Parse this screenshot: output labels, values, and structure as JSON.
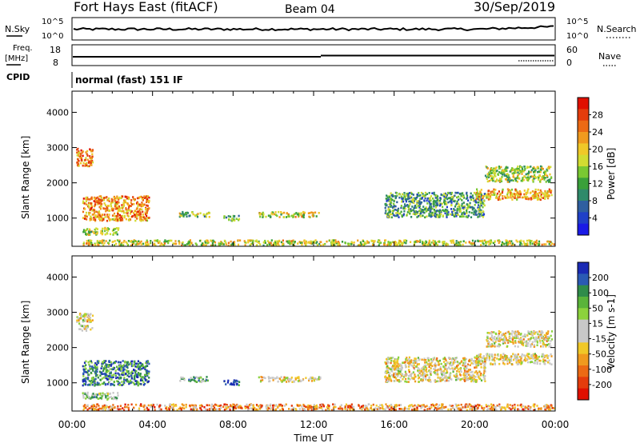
{
  "header": {
    "station": "Fort Hays East (fitACF)",
    "beam": "Beam 04",
    "date": "30/Sep/2019"
  },
  "top_panels": {
    "nsky_label": "N.Sky",
    "nsearch_label": "N.Search",
    "noise_ticks": [
      "10^5",
      "10^0"
    ],
    "freq_label_1": "Freq.",
    "freq_label_2": "[MHz]",
    "freq_ticks": [
      "18",
      "8"
    ],
    "nave_label": "Nave",
    "nave_ticks": [
      "60",
      "0"
    ],
    "cpid_label": "CPID",
    "cpid_text": "normal (fast) 151 IF"
  },
  "chart_data": [
    {
      "type": "heatmap",
      "title": "",
      "xlabel": "Time UT",
      "ylabel": "Slant Range [km]",
      "x_ticks": [
        "00:00",
        "04:00",
        "08:00",
        "12:00",
        "16:00",
        "20:00",
        "00:00"
      ],
      "y_ticks": [
        1000,
        2000,
        3000,
        4000
      ],
      "ylim": [
        200,
        4600
      ],
      "colorbar": {
        "label": "Power [dB]",
        "ticks": [
          "4",
          "8",
          "12",
          "16",
          "20",
          "24",
          "28"
        ],
        "colors": [
          "#1a1ae6",
          "#2040c8",
          "#2f5fa0",
          "#2f8a6a",
          "#3aa03a",
          "#7ac832",
          "#d2dc32",
          "#f0c828",
          "#f09a1e",
          "#ec6a14",
          "#e43c0c",
          "#e01000"
        ]
      },
      "regions": [
        {
          "name": "near-range-band",
          "t": [
            0.5,
            24
          ],
          "r": [
            250,
            400
          ],
          "level": 0.55
        },
        {
          "name": "early-high-echo",
          "t": [
            0.2,
            1.0
          ],
          "r": [
            2500,
            3000
          ],
          "level": 0.75
        },
        {
          "name": "morning-scatter",
          "t": [
            0.5,
            3.8
          ],
          "r": [
            950,
            1650
          ],
          "level": 0.72
        },
        {
          "name": "low-morning",
          "t": [
            0.5,
            2.3
          ],
          "r": [
            550,
            750
          ],
          "level": 0.5
        },
        {
          "name": "mid-day-patch-1",
          "t": [
            5.3,
            6.8
          ],
          "r": [
            1050,
            1200
          ],
          "level": 0.45
        },
        {
          "name": "mid-day-patch-2",
          "t": [
            7.5,
            8.3
          ],
          "r": [
            950,
            1100
          ],
          "level": 0.4
        },
        {
          "name": "mid-day-patch-3",
          "t": [
            9.2,
            12.3
          ],
          "r": [
            1050,
            1200
          ],
          "level": 0.55
        },
        {
          "name": "evening-arc",
          "t": [
            15.5,
            20.5
          ],
          "r": [
            1050,
            1750
          ],
          "level": 0.35
        },
        {
          "name": "night-upper",
          "t": [
            20.5,
            23.8
          ],
          "r": [
            2050,
            2500
          ],
          "level": 0.5
        },
        {
          "name": "night-lower",
          "t": [
            20.0,
            23.8
          ],
          "r": [
            1550,
            1850
          ],
          "level": 0.68
        }
      ]
    },
    {
      "type": "heatmap",
      "title": "",
      "xlabel": "Time UT",
      "ylabel": "Slant Range [km]",
      "x_ticks": [
        "00:00",
        "04:00",
        "08:00",
        "12:00",
        "16:00",
        "20:00",
        "00:00"
      ],
      "y_ticks": [
        1000,
        2000,
        3000,
        4000
      ],
      "ylim": [
        200,
        4600
      ],
      "colorbar": {
        "label": "Velocity [m s-1]",
        "ticks": [
          "200",
          "100",
          "50",
          "15",
          "-15",
          "-50",
          "-100",
          "-200"
        ],
        "colors": [
          "#1a2ab4",
          "#2a5ab4",
          "#2f8c4a",
          "#5ab43a",
          "#8cd23c",
          "#c8c8c8",
          "#c8c8c8",
          "#f0c828",
          "#f09a1e",
          "#ec6a14",
          "#e43c0c",
          "#e01000"
        ]
      },
      "regions": [
        {
          "name": "near-range-band",
          "t": [
            0.5,
            24
          ],
          "r": [
            250,
            420
          ],
          "level": 0.72
        },
        {
          "name": "early-high-echo",
          "t": [
            0.2,
            1.0
          ],
          "r": [
            2500,
            3000
          ],
          "level": 0.55
        },
        {
          "name": "morning-scatter",
          "t": [
            0.5,
            3.8
          ],
          "r": [
            950,
            1650
          ],
          "level": 0.2
        },
        {
          "name": "low-morning",
          "t": [
            0.5,
            2.3
          ],
          "r": [
            550,
            750
          ],
          "level": 0.38
        },
        {
          "name": "mid-day-patch-1",
          "t": [
            5.3,
            6.8
          ],
          "r": [
            1050,
            1200
          ],
          "level": 0.35
        },
        {
          "name": "mid-day-patch-2",
          "t": [
            7.5,
            8.3
          ],
          "r": [
            950,
            1100
          ],
          "level": 0.1
        },
        {
          "name": "mid-day-patch-3",
          "t": [
            9.2,
            12.3
          ],
          "r": [
            1050,
            1200
          ],
          "level": 0.55
        },
        {
          "name": "evening-arc",
          "t": [
            15.5,
            20.5
          ],
          "r": [
            1050,
            1750
          ],
          "level": 0.55
        },
        {
          "name": "night-upper",
          "t": [
            20.5,
            23.8
          ],
          "r": [
            2050,
            2500
          ],
          "level": 0.55
        },
        {
          "name": "night-lower",
          "t": [
            20.0,
            23.8
          ],
          "r": [
            1550,
            1850
          ],
          "level": 0.55
        }
      ]
    }
  ]
}
